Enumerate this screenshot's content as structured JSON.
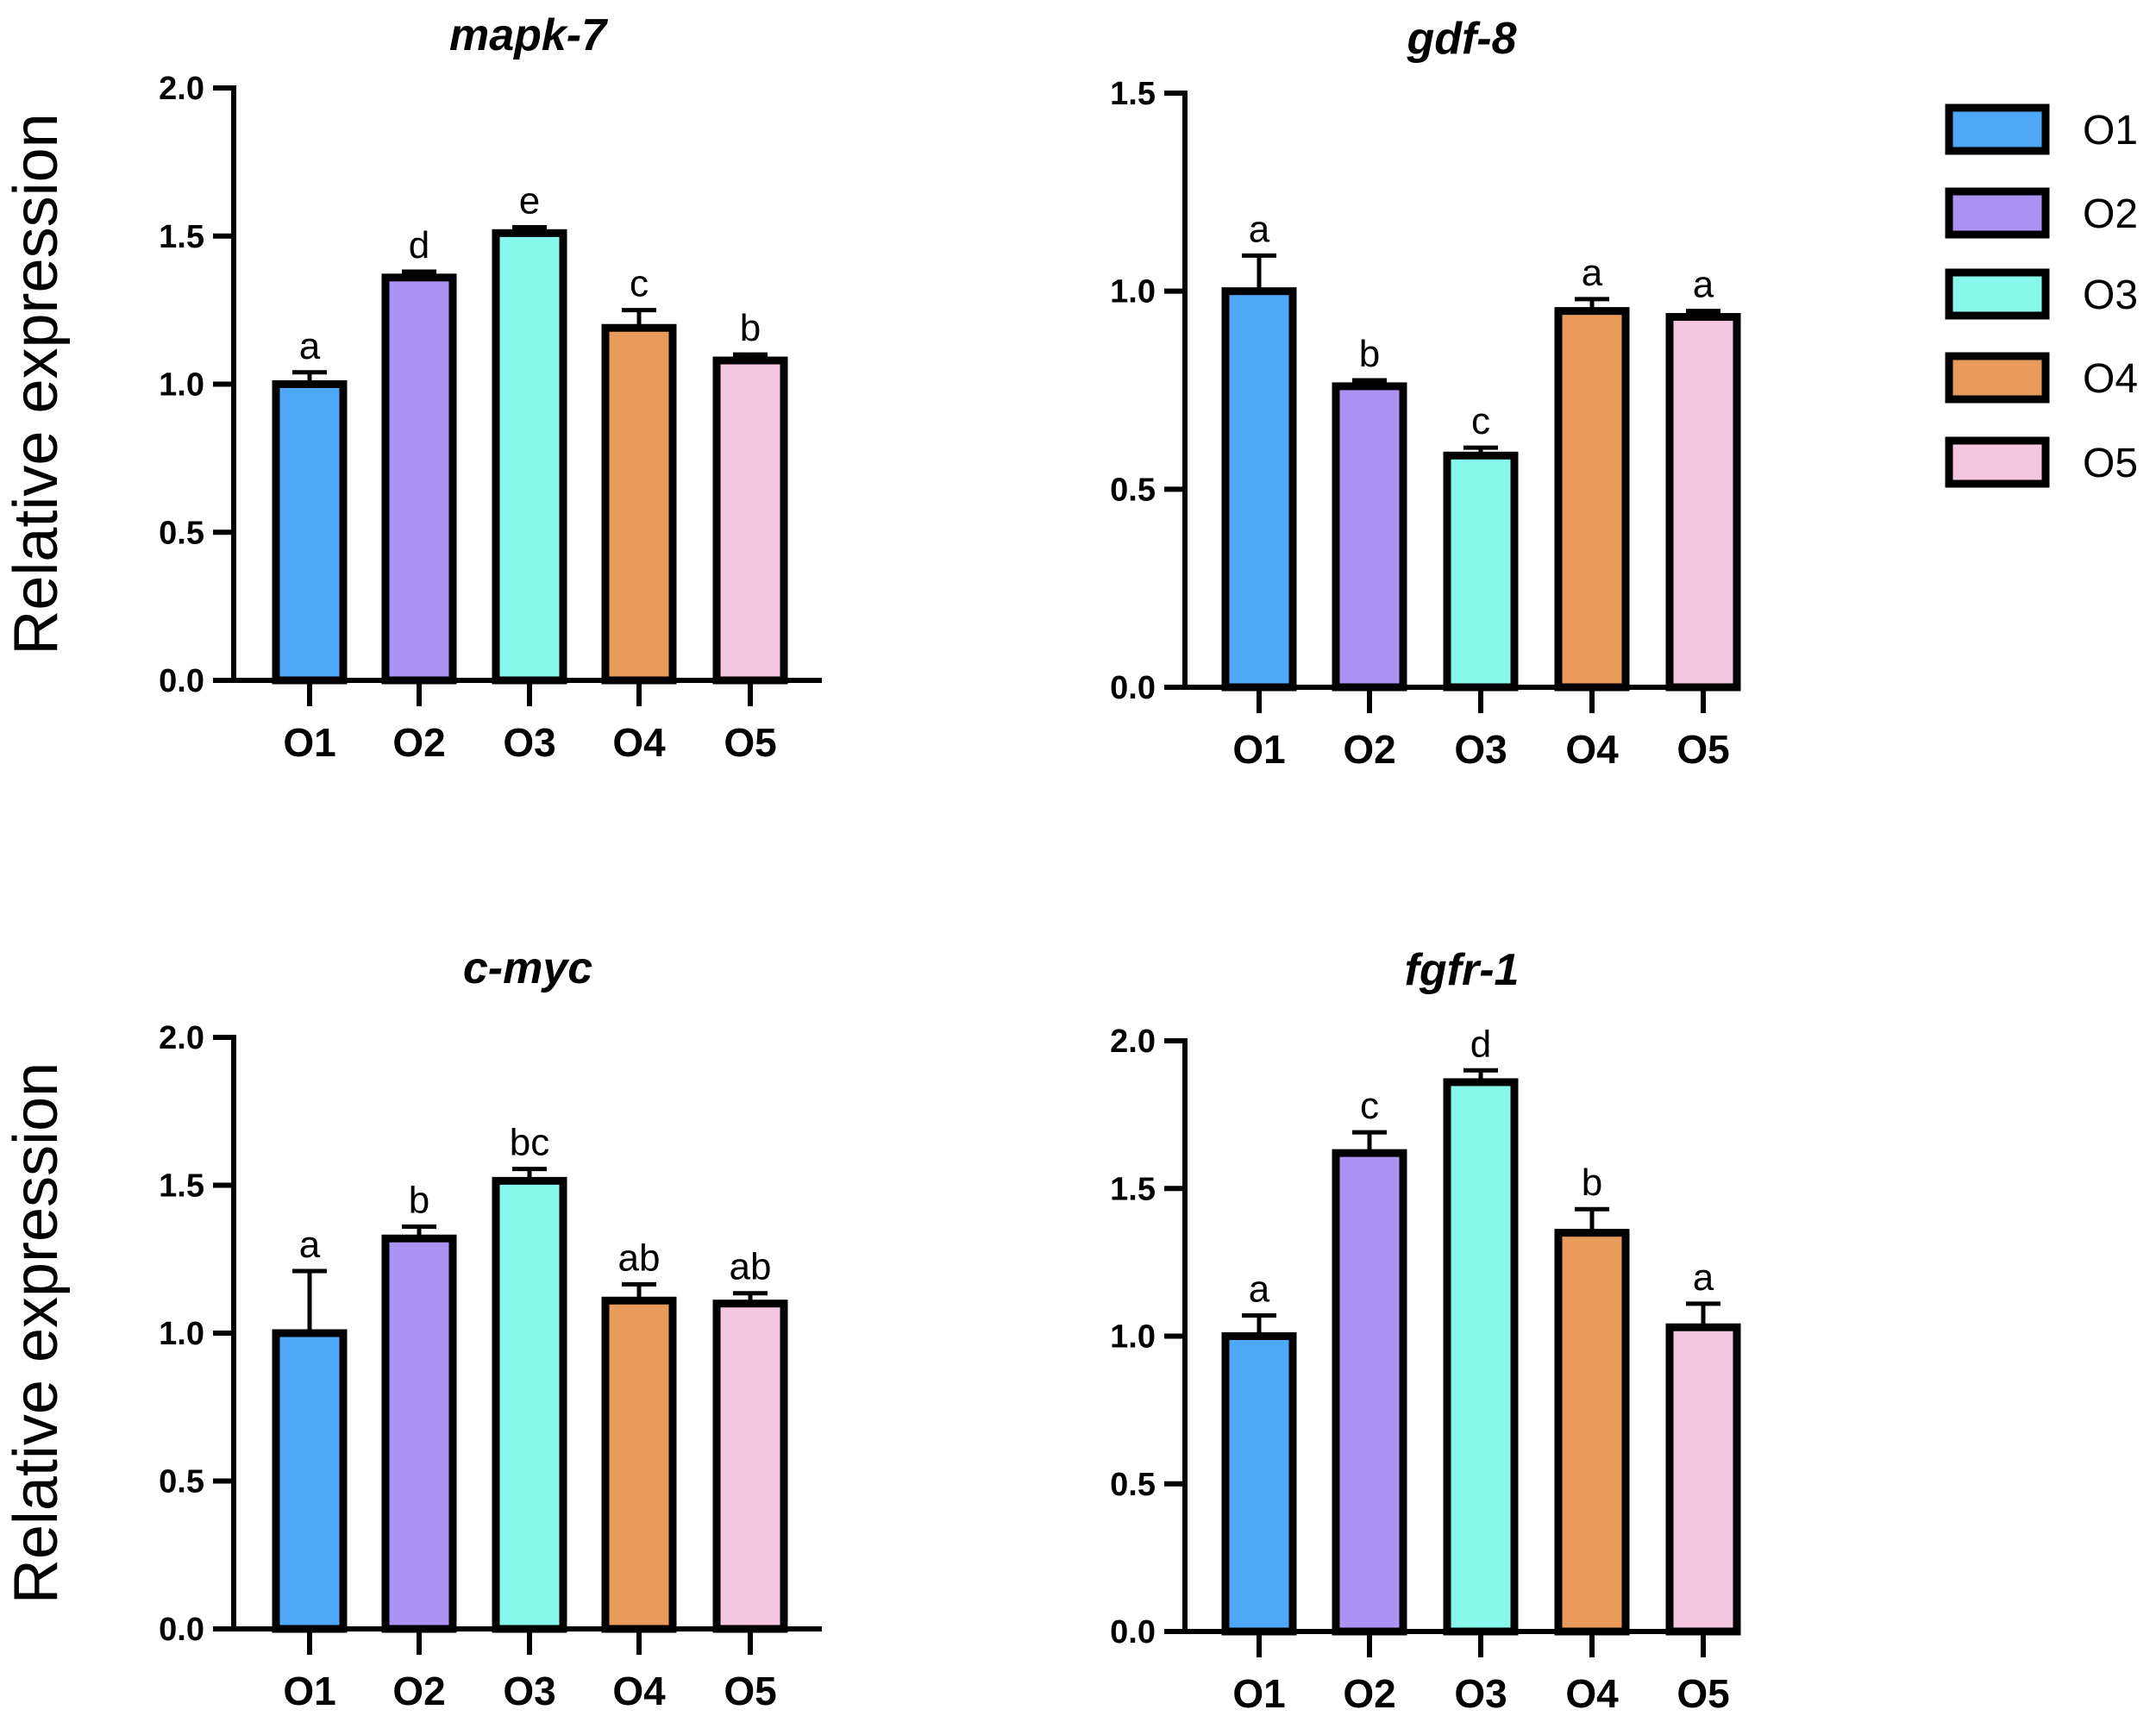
{
  "chart_data": [
    {
      "type": "bar",
      "title": "mapk-7",
      "ylabel": "Relative expression",
      "xlabel": "",
      "categories": [
        "O1",
        "O2",
        "O3",
        "O4",
        "O5"
      ],
      "values": [
        1.0,
        1.36,
        1.51,
        1.19,
        1.08
      ],
      "errors": [
        0.04,
        0.02,
        0.02,
        0.06,
        0.02
      ],
      "significance": [
        "a",
        "d",
        "e",
        "c",
        "b"
      ],
      "ylim": [
        0,
        2.0
      ],
      "yticks": [
        "0.0",
        "0.5",
        "1.0",
        "1.5",
        "2.0"
      ],
      "grid": false
    },
    {
      "type": "bar",
      "title": "gdf-8",
      "ylabel": "",
      "xlabel": "",
      "categories": [
        "O1",
        "O2",
        "O3",
        "O4",
        "O5"
      ],
      "values": [
        1.0,
        0.76,
        0.585,
        0.95,
        0.935
      ],
      "errors": [
        0.09,
        0.015,
        0.02,
        0.03,
        0.015
      ],
      "significance": [
        "a",
        "b",
        "c",
        "a",
        "a"
      ],
      "ylim": [
        0,
        1.5
      ],
      "yticks": [
        "0.0",
        "0.5",
        "1.0",
        "1.5"
      ],
      "grid": false
    },
    {
      "type": "bar",
      "title": "c-myc",
      "ylabel": "Relative expression",
      "xlabel": "",
      "categories": [
        "O1",
        "O2",
        "O3",
        "O4",
        "O5"
      ],
      "values": [
        1.0,
        1.32,
        1.515,
        1.11,
        1.1
      ],
      "errors": [
        0.21,
        0.04,
        0.04,
        0.055,
        0.035
      ],
      "significance": [
        "a",
        "b",
        "bc",
        "ab",
        "ab"
      ],
      "ylim": [
        0,
        2.0
      ],
      "yticks": [
        "0.0",
        "0.5",
        "1.0",
        "1.5",
        "2.0"
      ],
      "grid": false
    },
    {
      "type": "bar",
      "title": "fgfr-1",
      "ylabel": "",
      "xlabel": "",
      "categories": [
        "O1",
        "O2",
        "O3",
        "O4",
        "O5"
      ],
      "values": [
        1.0,
        1.62,
        1.86,
        1.35,
        1.03
      ],
      "errors": [
        0.07,
        0.07,
        0.04,
        0.08,
        0.08
      ],
      "significance": [
        "a",
        "c",
        "d",
        "b",
        "a"
      ],
      "ylim": [
        0,
        2.0
      ],
      "yticks": [
        "0.0",
        "0.5",
        "1.0",
        "1.5",
        "2.0"
      ],
      "grid": false
    }
  ],
  "legend": {
    "placement": "top-right",
    "entries": [
      {
        "label": "O1",
        "color": "#4FA8F7"
      },
      {
        "label": "O2",
        "color": "#AC92F2"
      },
      {
        "label": "O3",
        "color": "#86F7EB"
      },
      {
        "label": "O4",
        "color": "#E89B5A"
      },
      {
        "label": "O5",
        "color": "#F4C6E0"
      }
    ]
  }
}
